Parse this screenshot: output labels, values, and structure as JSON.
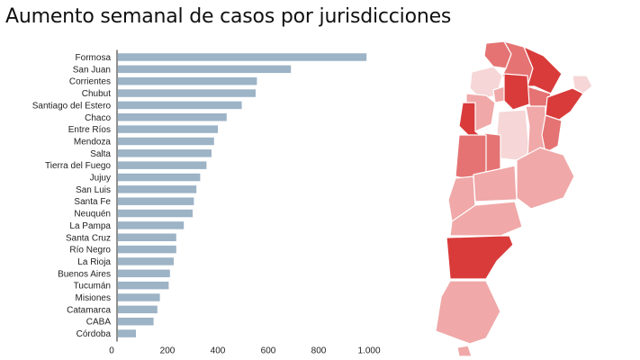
{
  "title": "Aumento semanal de casos por jurisdicciones",
  "colors": {
    "bar": "#9db3c6",
    "map_dark": "#d93b3b",
    "map_mid": "#e57373",
    "map_light": "#f0a8a8",
    "map_pale": "#f6d6d6"
  },
  "chart_data": {
    "type": "bar",
    "orientation": "horizontal",
    "categories": [
      "Formosa",
      "San Juan",
      "Corrientes",
      "Chubut",
      "Santiago del Estero",
      "Chaco",
      "Entre Ríos",
      "Mendoza",
      "Salta",
      "Tierra del Fuego",
      "Jujuy",
      "San Luis",
      "Santa Fe",
      "Neuquén",
      "La Pampa",
      "Santa Cruz",
      "Río Negro",
      "La Rioja",
      "Buenos Aires",
      "Tucumán",
      "Misiones",
      "Catamarca",
      "CABA",
      "Córdoba"
    ],
    "values": [
      990,
      690,
      555,
      550,
      495,
      435,
      400,
      385,
      375,
      355,
      330,
      315,
      305,
      300,
      265,
      235,
      235,
      225,
      210,
      205,
      170,
      160,
      145,
      75
    ],
    "xlim": [
      0,
      1000
    ],
    "xticks": [
      0,
      200,
      400,
      600,
      800,
      1000
    ],
    "xtick_labels": [
      "0",
      "200",
      "400",
      "600",
      "800",
      "1.000"
    ],
    "grid": false,
    "legend": "none"
  }
}
